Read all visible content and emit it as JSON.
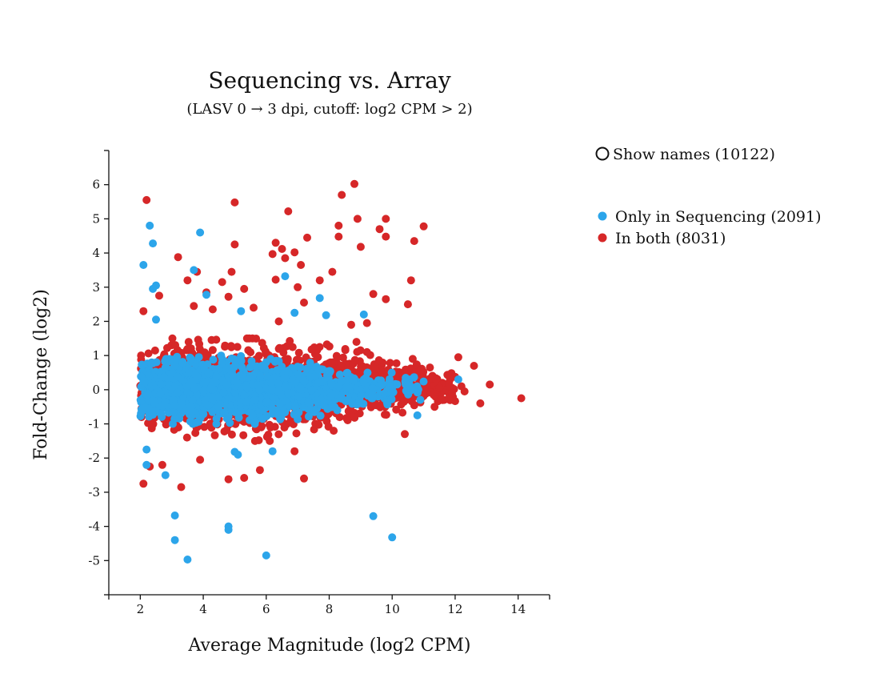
{
  "chart_data": {
    "type": "scatter",
    "title": "Sequencing vs. Array",
    "subtitle": "(LASV 0 → 3 dpi, cutoff: log2 CPM > 2)",
    "xlabel": "Average Magnitude (log2 CPM)",
    "ylabel": "Fold-Change (log2)",
    "xlim": [
      1,
      15
    ],
    "ylim": [
      -6,
      7
    ],
    "x_ticks": [
      2,
      4,
      6,
      8,
      10,
      12,
      14
    ],
    "y_ticks": [
      -5,
      -4,
      -3,
      -2,
      -1,
      0,
      1,
      2,
      3,
      4,
      5,
      6
    ],
    "grid": false,
    "legend_position": "right",
    "toggle": {
      "label": "Show names (10122)",
      "checked": false
    },
    "series": [
      {
        "name": "In both (8031)",
        "color": "#d62728",
        "outliers": [
          [
            2.2,
            5.55
          ],
          [
            8.8,
            6.02
          ],
          [
            8.4,
            5.7
          ],
          [
            5.0,
            5.48
          ],
          [
            6.7,
            5.22
          ],
          [
            9.8,
            5.0
          ],
          [
            8.9,
            5.0
          ],
          [
            9.6,
            4.7
          ],
          [
            11.0,
            4.78
          ],
          [
            10.7,
            4.35
          ],
          [
            8.3,
            4.8
          ],
          [
            9.8,
            4.48
          ],
          [
            8.3,
            4.48
          ],
          [
            7.3,
            4.45
          ],
          [
            6.3,
            4.3
          ],
          [
            5.0,
            4.25
          ],
          [
            9.0,
            4.18
          ],
          [
            3.2,
            3.88
          ],
          [
            6.9,
            4.02
          ],
          [
            6.5,
            4.12
          ],
          [
            6.2,
            3.97
          ],
          [
            6.6,
            3.85
          ],
          [
            3.8,
            3.45
          ],
          [
            4.9,
            3.45
          ],
          [
            7.1,
            3.65
          ],
          [
            8.1,
            3.45
          ],
          [
            3.5,
            3.2
          ],
          [
            4.6,
            3.15
          ],
          [
            7.7,
            3.2
          ],
          [
            6.3,
            3.22
          ],
          [
            10.6,
            3.2
          ],
          [
            4.1,
            2.85
          ],
          [
            5.3,
            2.95
          ],
          [
            7.0,
            3.0
          ],
          [
            9.4,
            2.8
          ],
          [
            2.6,
            2.75
          ],
          [
            4.8,
            2.72
          ],
          [
            9.8,
            2.65
          ],
          [
            10.5,
            2.5
          ],
          [
            5.6,
            2.4
          ],
          [
            7.2,
            2.55
          ],
          [
            2.1,
            2.3
          ],
          [
            4.3,
            2.35
          ],
          [
            3.7,
            2.45
          ],
          [
            8.7,
            1.9
          ],
          [
            9.2,
            1.95
          ],
          [
            6.4,
            2.0
          ],
          [
            2.1,
            -2.75
          ],
          [
            3.3,
            -2.85
          ],
          [
            4.8,
            -2.62
          ],
          [
            5.3,
            -2.58
          ],
          [
            7.2,
            -2.6
          ],
          [
            5.8,
            -2.35
          ],
          [
            10.4,
            -1.3
          ],
          [
            2.7,
            -2.2
          ],
          [
            2.3,
            -2.25
          ],
          [
            3.9,
            -2.05
          ],
          [
            6.9,
            -1.8
          ],
          [
            12.6,
            0.7
          ],
          [
            13.1,
            0.15
          ],
          [
            14.1,
            -0.25
          ],
          [
            12.8,
            -0.4
          ],
          [
            12.1,
            0.95
          ],
          [
            11.9,
            -0.1
          ],
          [
            11.4,
            0.3
          ],
          [
            11.6,
            -0.3
          ],
          [
            12.2,
            0.1
          ],
          [
            11.2,
            0.65
          ],
          [
            11.8,
            0.2
          ],
          [
            12.3,
            -0.05
          ],
          [
            11.5,
            0.05
          ],
          [
            11.8,
            -0.25
          ]
        ],
        "cloud": [
          {
            "x": [
              2,
              3
            ],
            "y": [
              -1.2,
              1.3
            ],
            "n": 160
          },
          {
            "x": [
              3,
              4
            ],
            "y": [
              -1.4,
              1.5
            ],
            "n": 180
          },
          {
            "x": [
              4,
              5
            ],
            "y": [
              -1.5,
              1.5
            ],
            "n": 180
          },
          {
            "x": [
              5,
              6
            ],
            "y": [
              -1.5,
              1.5
            ],
            "n": 180
          },
          {
            "x": [
              6,
              7
            ],
            "y": [
              -1.5,
              1.5
            ],
            "n": 170
          },
          {
            "x": [
              7,
              8
            ],
            "y": [
              -1.4,
              1.4
            ],
            "n": 160
          },
          {
            "x": [
              8,
              9
            ],
            "y": [
              -1.2,
              1.4
            ],
            "n": 150
          },
          {
            "x": [
              9,
              10
            ],
            "y": [
              -0.9,
              1.1
            ],
            "n": 130
          },
          {
            "x": [
              10,
              11
            ],
            "y": [
              -0.7,
              0.9
            ],
            "n": 110
          },
          {
            "x": [
              11,
              12
            ],
            "y": [
              -0.5,
              0.6
            ],
            "n": 45
          }
        ]
      },
      {
        "name": "Only in Sequencing (2091)",
        "color": "#2ca5ea",
        "outliers": [
          [
            2.3,
            4.8
          ],
          [
            2.4,
            4.28
          ],
          [
            3.9,
            4.6
          ],
          [
            2.1,
            3.65
          ],
          [
            3.7,
            3.5
          ],
          [
            2.5,
            3.05
          ],
          [
            2.4,
            2.95
          ],
          [
            4.1,
            2.78
          ],
          [
            6.6,
            3.32
          ],
          [
            7.7,
            2.68
          ],
          [
            5.2,
            2.3
          ],
          [
            2.5,
            2.05
          ],
          [
            6.9,
            2.25
          ],
          [
            7.9,
            2.18
          ],
          [
            9.1,
            2.2
          ],
          [
            2.2,
            -2.2
          ],
          [
            2.8,
            -2.5
          ],
          [
            3.1,
            -3.68
          ],
          [
            3.1,
            -4.4
          ],
          [
            3.5,
            -4.97
          ],
          [
            4.8,
            -4.0
          ],
          [
            4.8,
            -4.1
          ],
          [
            6.0,
            -4.85
          ],
          [
            9.4,
            -3.7
          ],
          [
            10.0,
            -4.32
          ],
          [
            10.8,
            -0.75
          ],
          [
            12.1,
            0.3
          ],
          [
            6.2,
            -1.8
          ],
          [
            5.1,
            -1.9
          ],
          [
            2.2,
            -1.75
          ],
          [
            5.0,
            -1.82
          ]
        ],
        "cloud": [
          {
            "x": [
              2,
              3
            ],
            "y": [
              -0.9,
              0.9
            ],
            "n": 220
          },
          {
            "x": [
              3,
              4
            ],
            "y": [
              -1.0,
              1.0
            ],
            "n": 240
          },
          {
            "x": [
              4,
              5
            ],
            "y": [
              -1.0,
              1.0
            ],
            "n": 240
          },
          {
            "x": [
              5,
              6
            ],
            "y": [
              -1.0,
              1.0
            ],
            "n": 230
          },
          {
            "x": [
              6,
              7
            ],
            "y": [
              -0.9,
              0.9
            ],
            "n": 190
          },
          {
            "x": [
              7,
              8
            ],
            "y": [
              -0.8,
              0.8
            ],
            "n": 150
          },
          {
            "x": [
              8,
              9
            ],
            "y": [
              -0.6,
              0.6
            ],
            "n": 100
          },
          {
            "x": [
              9,
              10
            ],
            "y": [
              -0.5,
              0.5
            ],
            "n": 60
          },
          {
            "x": [
              10,
              11
            ],
            "y": [
              -0.4,
              0.4
            ],
            "n": 25
          }
        ]
      }
    ]
  }
}
